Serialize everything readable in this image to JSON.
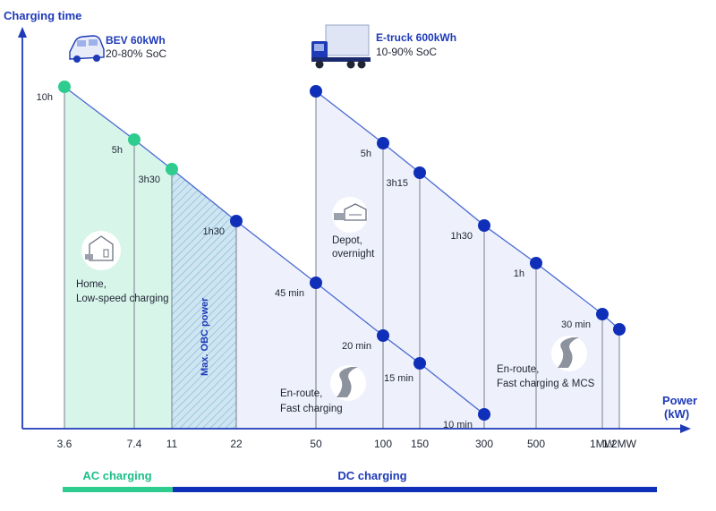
{
  "chart_data": {
    "type": "scatter",
    "y_title": "Charging time",
    "x_title_line1": "Power",
    "x_title_line2": "(kW)",
    "x_ticks": [
      "3.6",
      "7.4",
      "11",
      "22",
      "50",
      "100",
      "150",
      "300",
      "500",
      "1MW",
      "1.2MW"
    ],
    "series": [
      {
        "name": "BEV 60kWh",
        "subtitle": "20-80% SoC",
        "points": [
          {
            "x": "3.6",
            "label": "10h",
            "color": "#2ecc8e"
          },
          {
            "x": "7.4",
            "label": "5h",
            "color": "#2ecc8e"
          },
          {
            "x": "11",
            "label": "3h30",
            "color": "#2ecc8e"
          },
          {
            "x": "22",
            "label": "1h30",
            "color": "#0f2fb8"
          },
          {
            "x": "50",
            "label": "45 min",
            "color": "#0f2fb8"
          },
          {
            "x": "100",
            "label": "20 min",
            "color": "#0f2fb8"
          },
          {
            "x": "150",
            "label": "15 min",
            "color": "#0f2fb8"
          },
          {
            "x": "300",
            "label": "10 min",
            "color": "#0f2fb8"
          }
        ]
      },
      {
        "name": "E-truck 600kWh",
        "subtitle": "10-90% SoC",
        "points": [
          {
            "x": "50",
            "label": "",
            "color": "#0f2fb8"
          },
          {
            "x": "100",
            "label": "5h",
            "color": "#0f2fb8"
          },
          {
            "x": "150",
            "label": "3h15",
            "color": "#0f2fb8"
          },
          {
            "x": "300",
            "label": "1h30",
            "color": "#0f2fb8"
          },
          {
            "x": "500",
            "label": "1h",
            "color": "#0f2fb8"
          },
          {
            "x": "1MW",
            "label": "30 min",
            "color": "#0f2fb8"
          },
          {
            "x": "1.2MW",
            "label": "",
            "color": "#0f2fb8"
          }
        ]
      }
    ],
    "annotations": {
      "home": [
        "Home,",
        "Low-speed charging"
      ],
      "depot": [
        "Depot,",
        "overnight"
      ],
      "enroute_fast": [
        "En-route,",
        "Fast charging"
      ],
      "enroute_mcs": [
        "En-route,",
        "Fast charging & MCS"
      ],
      "obc": "Max. OBC power"
    },
    "bands": {
      "ac": "AC charging",
      "dc": "DC charging"
    },
    "colors": {
      "ac": "#2ecc8e",
      "dc": "#0f2fb8",
      "axis": "#1e3ab8"
    }
  }
}
